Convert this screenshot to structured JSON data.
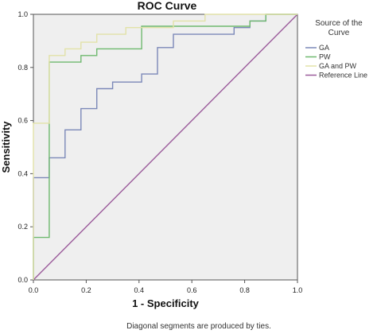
{
  "chart_data": {
    "type": "line",
    "title": "ROC Curve",
    "xlabel": "1 - Specificity",
    "ylabel": "Sensitivity",
    "xlim": [
      0,
      1
    ],
    "ylim": [
      0,
      1
    ],
    "xticks": [
      "0.0",
      "0.2",
      "0.4",
      "0.6",
      "0.8",
      "1.0"
    ],
    "yticks": [
      "0.0",
      "0.2",
      "0.4",
      "0.6",
      "0.8",
      "1.0"
    ],
    "grid": false,
    "legend": {
      "title_line1": "Source of the",
      "title_line2": "Curve",
      "placement": "right"
    },
    "footnote": "Diagonal segments are produced by ties.",
    "series": [
      {
        "name": "GA",
        "color": "#7b88b8",
        "x": [
          0,
          0,
          0.06,
          0.06,
          0.12,
          0.12,
          0.18,
          0.18,
          0.24,
          0.24,
          0.3,
          0.3,
          0.41,
          0.41,
          0.47,
          0.47,
          0.53,
          0.53,
          0.76,
          0.76,
          0.82,
          0.82,
          0.88,
          0.88,
          1.0
        ],
        "y": [
          0,
          0.385,
          0.385,
          0.46,
          0.46,
          0.565,
          0.565,
          0.645,
          0.645,
          0.72,
          0.72,
          0.745,
          0.745,
          0.775,
          0.775,
          0.875,
          0.875,
          0.925,
          0.925,
          0.95,
          0.95,
          0.975,
          0.975,
          1.0,
          1.0
        ]
      },
      {
        "name": "PW",
        "color": "#6fb96f",
        "x": [
          0,
          0,
          0.06,
          0.06,
          0.18,
          0.18,
          0.24,
          0.24,
          0.41,
          0.41,
          0.82,
          0.82,
          0.88,
          0.88,
          1.0
        ],
        "y": [
          0,
          0.16,
          0.16,
          0.82,
          0.82,
          0.845,
          0.845,
          0.87,
          0.87,
          0.955,
          0.955,
          0.975,
          0.975,
          1.0,
          1.0
        ]
      },
      {
        "name": "GA and PW",
        "color": "#e2e2a8",
        "x": [
          0,
          0,
          0.06,
          0.06,
          0.12,
          0.12,
          0.18,
          0.18,
          0.24,
          0.24,
          0.35,
          0.35,
          0.53,
          0.53,
          0.65,
          0.65,
          1.0
        ],
        "y": [
          0,
          0.59,
          0.59,
          0.845,
          0.845,
          0.87,
          0.87,
          0.895,
          0.895,
          0.925,
          0.925,
          0.95,
          0.95,
          0.975,
          0.975,
          1.0,
          1.0
        ]
      },
      {
        "name": "Reference Line",
        "color": "#9b5b9b",
        "x": [
          0,
          1
        ],
        "y": [
          0,
          1
        ]
      }
    ]
  }
}
